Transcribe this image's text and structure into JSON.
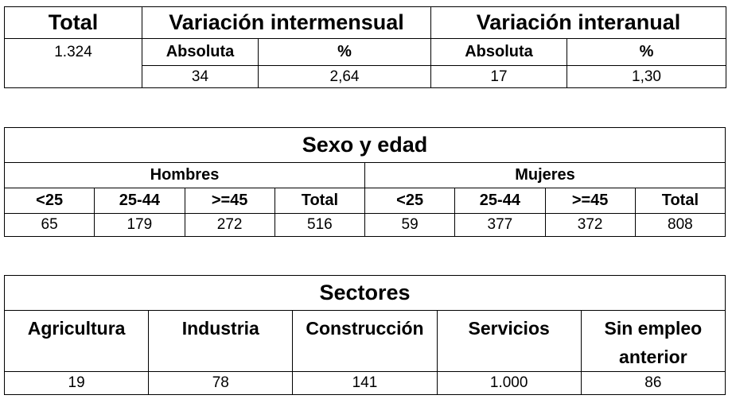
{
  "summary": {
    "headers": [
      "Total",
      "Variación intermensual",
      "Variación interanual"
    ],
    "subheaders": [
      "Absoluta",
      "%",
      "Absoluta",
      "%"
    ],
    "total": "1.324",
    "values": [
      "34",
      "2,64",
      "17",
      "1,30"
    ]
  },
  "sex_age": {
    "title": "Sexo y edad",
    "groups": [
      "Hombres",
      "Mujeres"
    ],
    "subheaders": [
      "<25",
      "25-44",
      ">=45",
      "Total",
      "<25",
      "25-44",
      ">=45",
      "Total"
    ],
    "values": [
      "65",
      "179",
      "272",
      "516",
      "59",
      "377",
      "372",
      "808"
    ]
  },
  "sectors": {
    "title": "Sectores",
    "headers": [
      "Agricultura",
      "Industria",
      "Construcción",
      "Servicios",
      "Sin empleo anterior"
    ],
    "values": [
      "19",
      "78",
      "141",
      "1.000",
      "86"
    ]
  }
}
